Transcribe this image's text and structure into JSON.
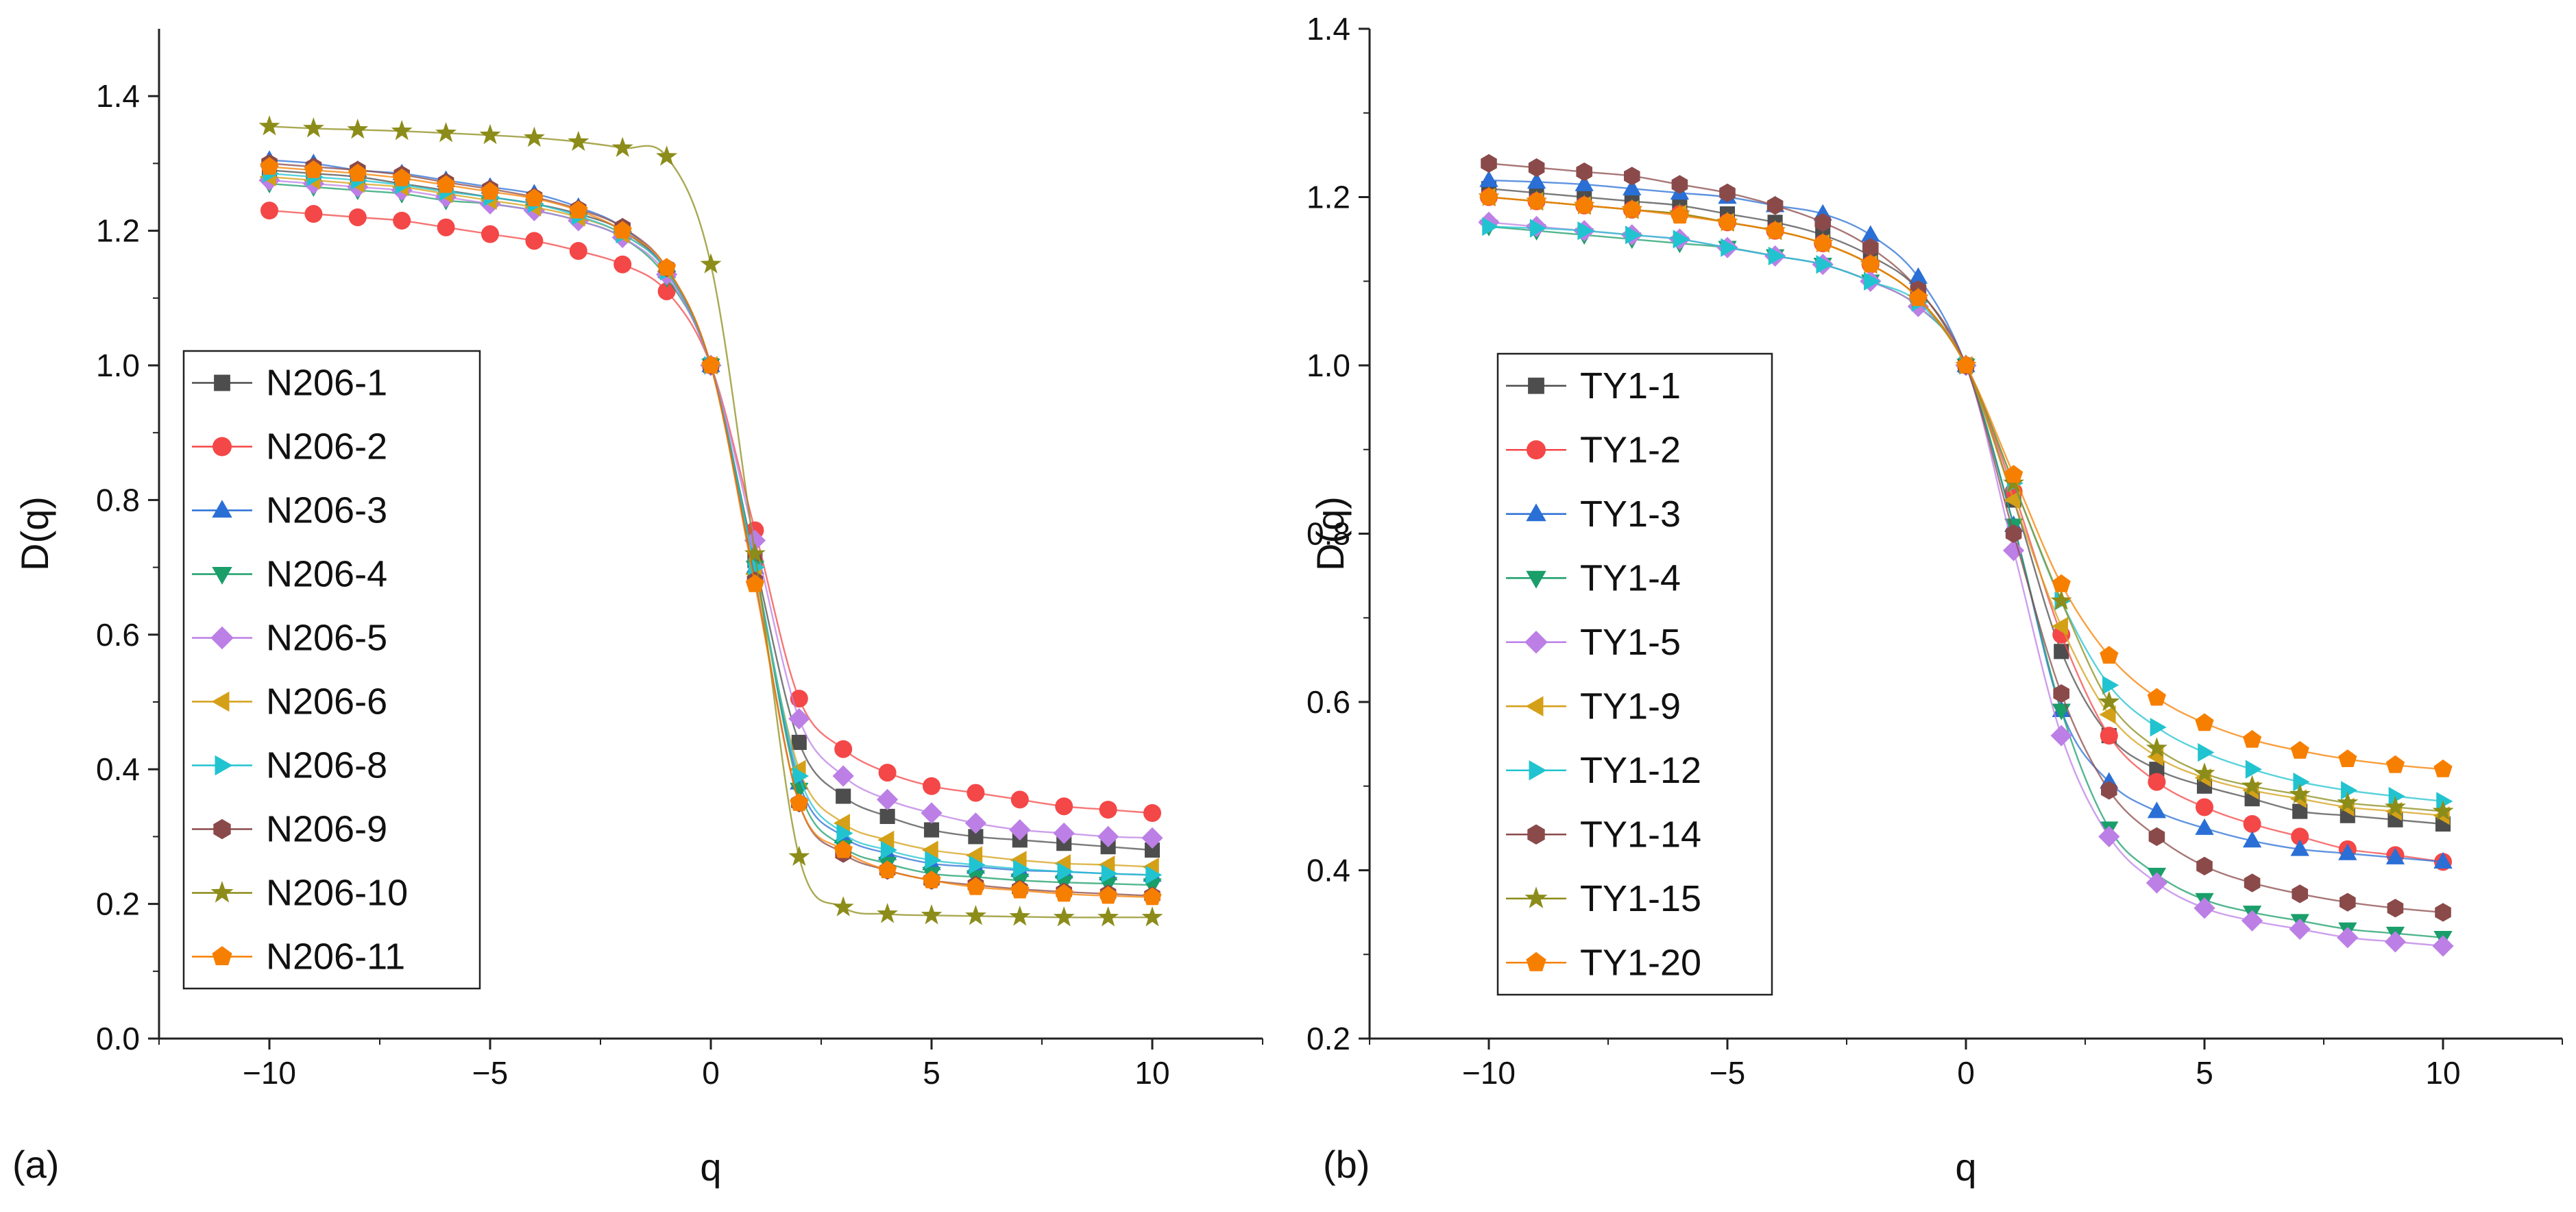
{
  "figure": {
    "panels": [
      {
        "tag": "(a)"
      },
      {
        "tag": "(b)"
      }
    ]
  },
  "chart_data": [
    {
      "type": "line",
      "panel": "(a)",
      "title": "",
      "xlabel": "q",
      "ylabel": "D(q)",
      "xlim": [
        -12.5,
        12.5
      ],
      "ylim": [
        0.0,
        1.5
      ],
      "xticks": [
        -10,
        -5,
        0,
        5,
        10
      ],
      "xtick_labels": [
        "−10",
        "−5",
        "0",
        "5",
        "10"
      ],
      "yticks": [
        0.0,
        0.2,
        0.4,
        0.6,
        0.8,
        1.0,
        1.2,
        1.4
      ],
      "ytick_labels": [
        "0.0",
        "0.2",
        "0.4",
        "0.6",
        "0.8",
        "1.0",
        "1.2",
        "1.4"
      ],
      "grid": false,
      "legend_position": "left",
      "x": [
        -10,
        -9,
        -8,
        -7,
        -6,
        -5,
        -4,
        -3,
        -2,
        -1,
        0,
        1,
        2,
        3,
        4,
        5,
        6,
        7,
        8,
        9,
        10
      ],
      "series": [
        {
          "name": "N206-1",
          "color": "#4d4d4d",
          "marker": "square",
          "values": [
            1.29,
            1.285,
            1.28,
            1.27,
            1.26,
            1.25,
            1.24,
            1.225,
            1.2,
            1.14,
            1.0,
            0.71,
            0.44,
            0.36,
            0.33,
            0.31,
            0.3,
            0.295,
            0.29,
            0.285,
            0.28
          ]
        },
        {
          "name": "N206-2",
          "color": "#f44747",
          "marker": "circle",
          "values": [
            1.23,
            1.225,
            1.22,
            1.215,
            1.205,
            1.195,
            1.185,
            1.17,
            1.15,
            1.11,
            1.0,
            0.755,
            0.505,
            0.43,
            0.395,
            0.375,
            0.365,
            0.355,
            0.345,
            0.34,
            0.335
          ]
        },
        {
          "name": "N206-3",
          "color": "#2a6fd6",
          "marker": "triangle-up",
          "values": [
            1.305,
            1.3,
            1.29,
            1.285,
            1.275,
            1.265,
            1.255,
            1.235,
            1.205,
            1.14,
            1.0,
            0.7,
            0.38,
            0.3,
            0.275,
            0.26,
            0.255,
            0.25,
            0.248,
            0.245,
            0.243
          ]
        },
        {
          "name": "N206-4",
          "color": "#1a9e6a",
          "marker": "triangle-down",
          "values": [
            1.27,
            1.265,
            1.26,
            1.255,
            1.245,
            1.24,
            1.23,
            1.215,
            1.19,
            1.13,
            1.0,
            0.7,
            0.37,
            0.285,
            0.26,
            0.245,
            0.24,
            0.235,
            0.232,
            0.23,
            0.228
          ]
        },
        {
          "name": "N206-5",
          "color": "#bc7fe6",
          "marker": "diamond",
          "values": [
            1.275,
            1.27,
            1.265,
            1.26,
            1.25,
            1.24,
            1.23,
            1.215,
            1.19,
            1.135,
            1.0,
            0.74,
            0.475,
            0.39,
            0.355,
            0.335,
            0.32,
            0.31,
            0.305,
            0.3,
            0.298
          ]
        },
        {
          "name": "N206-6",
          "color": "#d4a017",
          "marker": "triangle-left",
          "values": [
            1.28,
            1.275,
            1.27,
            1.265,
            1.255,
            1.245,
            1.235,
            1.22,
            1.195,
            1.14,
            1.0,
            0.69,
            0.4,
            0.32,
            0.295,
            0.28,
            0.272,
            0.265,
            0.26,
            0.258,
            0.255
          ]
        },
        {
          "name": "N206-8",
          "color": "#22c3d0",
          "marker": "triangle-right",
          "values": [
            1.285,
            1.28,
            1.275,
            1.268,
            1.258,
            1.25,
            1.24,
            1.222,
            1.195,
            1.14,
            1.0,
            0.7,
            0.39,
            0.305,
            0.28,
            0.265,
            0.258,
            0.252,
            0.248,
            0.245,
            0.243
          ]
        },
        {
          "name": "N206-9",
          "color": "#8b4a4a",
          "marker": "hexagon",
          "values": [
            1.3,
            1.295,
            1.29,
            1.283,
            1.272,
            1.262,
            1.25,
            1.232,
            1.205,
            1.145,
            1.0,
            0.68,
            0.35,
            0.275,
            0.25,
            0.235,
            0.228,
            0.222,
            0.218,
            0.215,
            0.212
          ]
        },
        {
          "name": "N206-10",
          "color": "#8c8c1a",
          "marker": "star",
          "values": [
            1.355,
            1.352,
            1.35,
            1.348,
            1.345,
            1.342,
            1.338,
            1.332,
            1.323,
            1.31,
            1.15,
            0.72,
            0.27,
            0.195,
            0.185,
            0.183,
            0.182,
            0.181,
            0.18,
            0.18,
            0.18
          ]
        },
        {
          "name": "N206-11",
          "color": "#f77f00",
          "marker": "pentagon",
          "values": [
            1.295,
            1.29,
            1.285,
            1.278,
            1.268,
            1.258,
            1.248,
            1.23,
            1.2,
            1.145,
            1.0,
            0.675,
            0.35,
            0.28,
            0.25,
            0.235,
            0.225,
            0.22,
            0.215,
            0.212,
            0.21
          ]
        }
      ]
    },
    {
      "type": "line",
      "panel": "(b)",
      "title": "",
      "xlabel": "q",
      "ylabel": "D(q)",
      "xlim": [
        -12.5,
        12.5
      ],
      "ylim": [
        0.2,
        1.4
      ],
      "xticks": [
        -10,
        -5,
        0,
        5,
        10
      ],
      "xtick_labels": [
        "−10",
        "−5",
        "0",
        "5",
        "10"
      ],
      "yticks": [
        0.2,
        0.4,
        0.6,
        0.8,
        1.0,
        1.2,
        1.4
      ],
      "ytick_labels": [
        "0.2",
        "0.4",
        "0.6",
        "0.8",
        "1.0",
        "1.2",
        "1.4"
      ],
      "grid": false,
      "legend_position": "left",
      "x": [
        -10,
        -9,
        -8,
        -7,
        -6,
        -5,
        -4,
        -3,
        -2,
        -1,
        0,
        1,
        2,
        3,
        4,
        5,
        6,
        7,
        8,
        9,
        10
      ],
      "series": [
        {
          "name": "TY1-1",
          "color": "#4d4d4d",
          "marker": "square",
          "values": [
            1.21,
            1.205,
            1.2,
            1.195,
            1.19,
            1.18,
            1.17,
            1.155,
            1.13,
            1.09,
            1.0,
            0.84,
            0.66,
            0.56,
            0.52,
            0.5,
            0.485,
            0.47,
            0.465,
            0.46,
            0.455
          ]
        },
        {
          "name": "TY1-2",
          "color": "#f44747",
          "marker": "circle",
          "values": [
            1.2,
            1.195,
            1.19,
            1.185,
            1.18,
            1.17,
            1.16,
            1.145,
            1.12,
            1.08,
            1.0,
            0.85,
            0.68,
            0.56,
            0.505,
            0.475,
            0.455,
            0.44,
            0.425,
            0.418,
            0.41
          ]
        },
        {
          "name": "TY1-3",
          "color": "#2a6fd6",
          "marker": "triangle-up",
          "values": [
            1.22,
            1.218,
            1.215,
            1.21,
            1.205,
            1.2,
            1.19,
            1.18,
            1.155,
            1.105,
            1.0,
            0.81,
            0.59,
            0.505,
            0.47,
            0.45,
            0.435,
            0.425,
            0.42,
            0.415,
            0.41
          ]
        },
        {
          "name": "TY1-4",
          "color": "#1a9e6a",
          "marker": "triangle-down",
          "values": [
            1.165,
            1.16,
            1.155,
            1.15,
            1.145,
            1.14,
            1.13,
            1.12,
            1.1,
            1.07,
            1.0,
            0.81,
            0.59,
            0.45,
            0.395,
            0.365,
            0.35,
            0.34,
            0.33,
            0.325,
            0.32
          ]
        },
        {
          "name": "TY1-5",
          "color": "#bc7fe6",
          "marker": "diamond",
          "values": [
            1.17,
            1.165,
            1.16,
            1.155,
            1.15,
            1.14,
            1.13,
            1.12,
            1.1,
            1.07,
            1.0,
            0.78,
            0.56,
            0.44,
            0.385,
            0.355,
            0.34,
            0.33,
            0.32,
            0.315,
            0.31
          ]
        },
        {
          "name": "TY1-9",
          "color": "#d4a017",
          "marker": "triangle-left",
          "values": [
            1.2,
            1.195,
            1.19,
            1.185,
            1.18,
            1.17,
            1.16,
            1.145,
            1.12,
            1.08,
            1.0,
            0.84,
            0.69,
            0.585,
            0.535,
            0.51,
            0.495,
            0.485,
            0.475,
            0.47,
            0.465
          ]
        },
        {
          "name": "TY1-12",
          "color": "#22c3d0",
          "marker": "triangle-right",
          "values": [
            1.165,
            1.163,
            1.16,
            1.155,
            1.15,
            1.14,
            1.13,
            1.12,
            1.1,
            1.075,
            1.0,
            0.86,
            0.72,
            0.62,
            0.57,
            0.54,
            0.52,
            0.505,
            0.495,
            0.488,
            0.482
          ]
        },
        {
          "name": "TY1-14",
          "color": "#8b4a4a",
          "marker": "hexagon",
          "values": [
            1.24,
            1.235,
            1.23,
            1.225,
            1.215,
            1.205,
            1.19,
            1.17,
            1.14,
            1.09,
            1.0,
            0.8,
            0.61,
            0.495,
            0.44,
            0.405,
            0.385,
            0.372,
            0.362,
            0.355,
            0.35
          ]
        },
        {
          "name": "TY1-15",
          "color": "#8c8c1a",
          "marker": "star",
          "values": [
            1.2,
            1.195,
            1.19,
            1.185,
            1.18,
            1.17,
            1.16,
            1.145,
            1.12,
            1.08,
            1.0,
            0.86,
            0.72,
            0.6,
            0.545,
            0.515,
            0.5,
            0.49,
            0.48,
            0.475,
            0.47
          ]
        },
        {
          "name": "TY1-20",
          "color": "#f77f00",
          "marker": "pentagon",
          "values": [
            1.2,
            1.195,
            1.19,
            1.185,
            1.178,
            1.17,
            1.16,
            1.145,
            1.12,
            1.08,
            1.0,
            0.87,
            0.74,
            0.655,
            0.605,
            0.575,
            0.555,
            0.542,
            0.532,
            0.525,
            0.52
          ]
        }
      ]
    }
  ]
}
